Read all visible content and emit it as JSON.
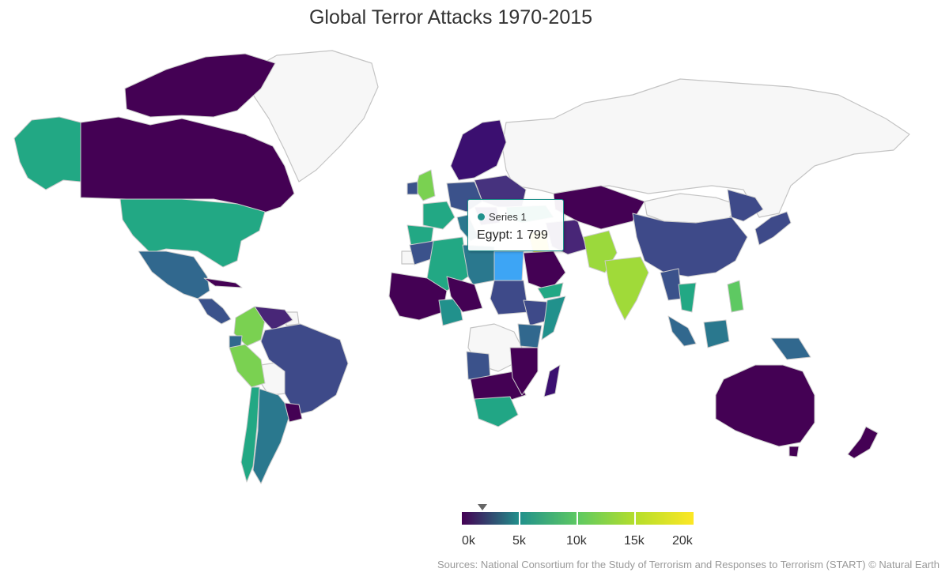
{
  "title": "Global Terror Attacks 1970-2015",
  "tooltip": {
    "series_label": "Series 1",
    "value_text": "Egypt: 1 799"
  },
  "legend": {
    "ticks": [
      "0k",
      "5k",
      "10k",
      "15k",
      "20k"
    ],
    "marker_value": 1799
  },
  "credits": "Sources: National Consortium for the Study of Terrorism and Responses to Terrorism (START) © Natural Earth",
  "colors": {
    "nodata": "#f7f7f7",
    "scale": [
      "#440154",
      "#21918c",
      "#5ec962",
      "#d9e022",
      "#fde725"
    ],
    "highlight": "#3da5f5"
  },
  "chart_data": {
    "type": "map",
    "title": "Global Terror Attacks 1970-2015",
    "value_range": [
      0,
      20000
    ],
    "series": [
      {
        "name": "Series 1",
        "highlighted": "Egypt",
        "highlighted_value": 1799
      }
    ],
    "regions": [
      {
        "name": "Egypt",
        "value": 1799
      }
    ]
  }
}
